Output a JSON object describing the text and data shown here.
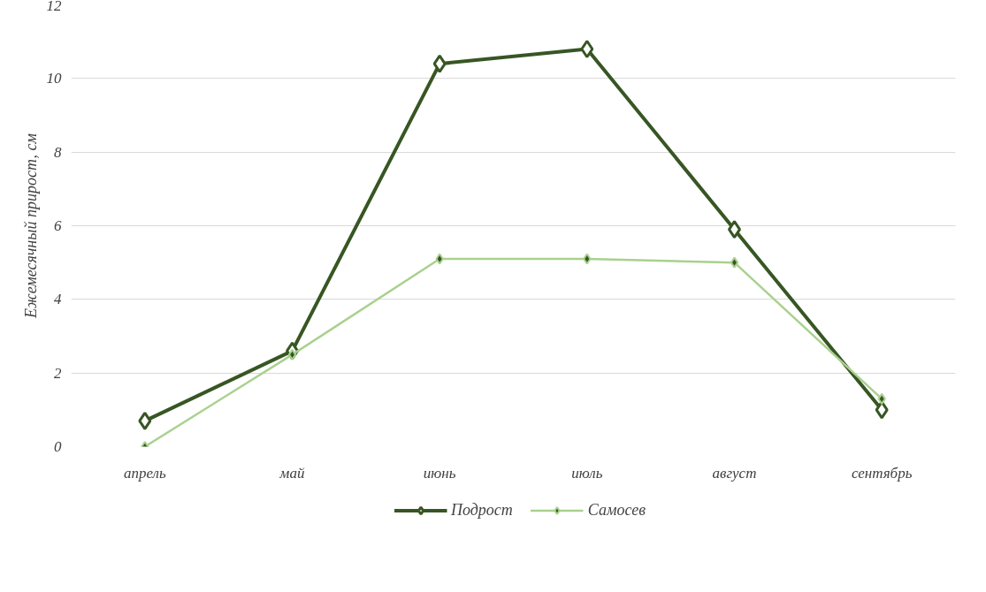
{
  "chart_data": {
    "type": "line",
    "ylabel": "Ежемесячный прирост, см",
    "categories": [
      "апрель",
      "май",
      "июнь",
      "июль",
      "август",
      "сентябрь"
    ],
    "series": [
      {
        "name": "Подрост",
        "color": "#375623",
        "values": [
          0.7,
          2.6,
          10.4,
          10.8,
          5.9,
          1.0
        ]
      },
      {
        "name": "Самосев",
        "color": "#a9d18e",
        "values": [
          0.0,
          2.5,
          5.1,
          5.1,
          5.0,
          1.3
        ]
      }
    ],
    "ylim": [
      0,
      12
    ],
    "yticks": [
      0,
      2,
      4,
      6,
      8,
      10,
      12
    ],
    "grid": "y",
    "legend": "bottom",
    "marker": "diamond",
    "line_style": "solid"
  }
}
